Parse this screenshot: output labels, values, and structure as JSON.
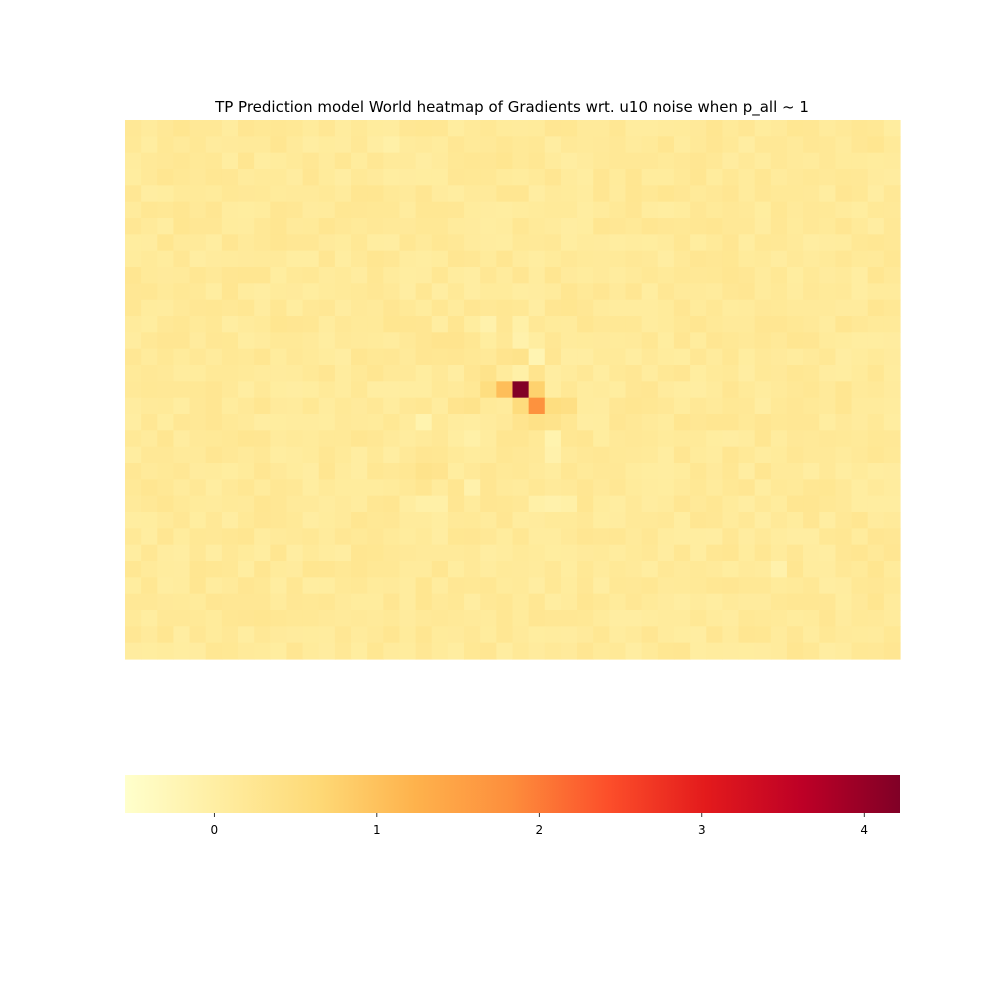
{
  "chart_data": {
    "type": "heatmap",
    "title": "TP Prediction model World heatmap of Gradients wrt. u10 noise when p_all ~ 1",
    "xlabel": "",
    "ylabel": "",
    "grid": false,
    "colormap": "YlOrRd",
    "color_range": [
      -0.55,
      4.22
    ],
    "colorbar": {
      "orientation": "horizontal",
      "placement": "bottom",
      "ticks": [
        0,
        1,
        2,
        3,
        4
      ],
      "tick_labels": [
        "0",
        "1",
        "2",
        "3",
        "4"
      ]
    },
    "grid_shape": {
      "rows": 33,
      "cols": 48
    },
    "background_value": 0.15,
    "background_variation": 0.12,
    "cells": [
      {
        "row": 16,
        "col": 24,
        "value": 4.2
      },
      {
        "row": 16,
        "col": 23,
        "value": 1.05
      },
      {
        "row": 16,
        "col": 25,
        "value": 0.75
      },
      {
        "row": 16,
        "col": 22,
        "value": 0.5
      },
      {
        "row": 17,
        "col": 25,
        "value": 1.75
      },
      {
        "row": 17,
        "col": 24,
        "value": 0.55
      },
      {
        "row": 17,
        "col": 26,
        "value": 0.5
      },
      {
        "row": 17,
        "col": 27,
        "value": 0.45
      },
      {
        "row": 17,
        "col": 21,
        "value": 0.35
      },
      {
        "row": 17,
        "col": 20,
        "value": 0.3
      },
      {
        "row": 18,
        "col": 25,
        "value": 0.4
      },
      {
        "row": 18,
        "col": 26,
        "value": 0.35
      },
      {
        "row": 18,
        "col": 24,
        "value": 0.3
      },
      {
        "row": 15,
        "col": 22,
        "value": 0.35
      },
      {
        "row": 15,
        "col": 24,
        "value": -0.05
      },
      {
        "row": 15,
        "col": 25,
        "value": 0.3
      },
      {
        "row": 14,
        "col": 25,
        "value": -0.2
      },
      {
        "row": 14,
        "col": 24,
        "value": 0.35
      },
      {
        "row": 14,
        "col": 23,
        "value": 0.3
      },
      {
        "row": 13,
        "col": 24,
        "value": -0.1
      },
      {
        "row": 13,
        "col": 25,
        "value": 0.05
      },
      {
        "row": 12,
        "col": 22,
        "value": -0.1
      },
      {
        "row": 12,
        "col": 24,
        "value": -0.05
      },
      {
        "row": 13,
        "col": 19,
        "value": 0.3
      },
      {
        "row": 13,
        "col": 20,
        "value": 0.3
      },
      {
        "row": 18,
        "col": 18,
        "value": -0.15
      },
      {
        "row": 19,
        "col": 21,
        "value": -0.05
      },
      {
        "row": 19,
        "col": 26,
        "value": -0.15
      },
      {
        "row": 20,
        "col": 26,
        "value": -0.1
      },
      {
        "row": 21,
        "col": 18,
        "value": 0.35
      },
      {
        "row": 21,
        "col": 19,
        "value": 0.3
      },
      {
        "row": 22,
        "col": 21,
        "value": -0.1
      },
      {
        "row": 23,
        "col": 18,
        "value": -0.05
      },
      {
        "row": 23,
        "col": 19,
        "value": -0.05
      },
      {
        "row": 23,
        "col": 25,
        "value": -0.05
      },
      {
        "row": 23,
        "col": 26,
        "value": -0.1
      },
      {
        "row": 23,
        "col": 27,
        "value": -0.05
      },
      {
        "row": 27,
        "col": 40,
        "value": -0.1
      },
      {
        "row": 1,
        "col": 16,
        "value": -0.05
      }
    ]
  }
}
